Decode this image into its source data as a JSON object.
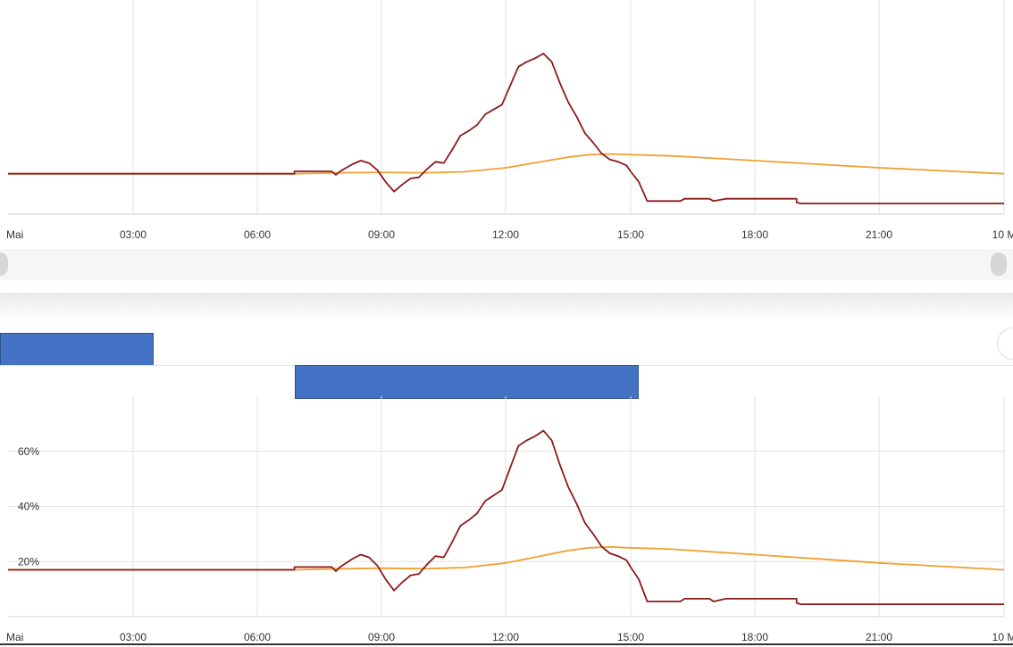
{
  "chart_data": [
    {
      "type": "line",
      "title": "",
      "x_ticks": [
        "Mai",
        "03:00",
        "06:00",
        "09:00",
        "12:00",
        "15:00",
        "18:00",
        "21:00",
        "10 M"
      ],
      "xlim": [
        0,
        24
      ],
      "ylim": [
        0,
        90
      ],
      "y_ticks": [],
      "grid": true,
      "series": [
        {
          "color": "#8b1a1a",
          "x": [
            0,
            6.9,
            7.8,
            7.9,
            8.0,
            8.3,
            8.5,
            8.7,
            8.9,
            9.1,
            9.3,
            9.5,
            9.7,
            9.9,
            10.1,
            10.3,
            10.5,
            10.7,
            10.9,
            11.1,
            11.3,
            11.5,
            11.7,
            11.9,
            12.1,
            12.3,
            12.5,
            12.7,
            12.9,
            13.1,
            13.3,
            13.5,
            13.7,
            13.9,
            14.1,
            14.3,
            14.5,
            14.7,
            14.9,
            15.0,
            15.2,
            15.4,
            16.2,
            16.3,
            16.9,
            17.0,
            17.3,
            18.0,
            19.0,
            19.1,
            24
          ],
          "y": [
            17,
            18,
            18,
            16.5,
            18,
            21,
            22.5,
            21.5,
            18.5,
            13.5,
            9.5,
            12.5,
            15,
            15.5,
            19,
            22,
            21.5,
            27,
            33,
            35,
            37.5,
            42,
            44,
            46,
            54,
            62,
            64,
            65.5,
            67.5,
            64,
            55,
            47,
            41,
            34,
            30,
            25.5,
            23,
            22,
            20.5,
            18,
            13.5,
            5.5,
            5.5,
            6.5,
            6.5,
            5.5,
            6.5,
            6.5,
            5,
            4.5,
            4.5
          ]
        },
        {
          "color": "#f0a030",
          "x": [
            0,
            6.9,
            8.0,
            9.0,
            10.0,
            11.0,
            12.0,
            12.5,
            13.0,
            13.5,
            14.0,
            14.5,
            15.0,
            16.0,
            18.0,
            21.0,
            24.0
          ],
          "y": [
            17,
            17,
            17.4,
            17.6,
            17.4,
            17.8,
            19.5,
            21,
            22.5,
            24,
            25,
            25.3,
            25,
            24.5,
            22.5,
            19.5,
            17
          ]
        }
      ]
    },
    {
      "type": "line",
      "title": "",
      "x_ticks": [
        "Mai",
        "03:00",
        "06:00",
        "09:00",
        "12:00",
        "15:00",
        "18:00",
        "21:00",
        "10 M"
      ],
      "xlim": [
        0,
        24
      ],
      "ylim": [
        0,
        80
      ],
      "y_ticks": [
        {
          "value": 20,
          "label": "20%"
        },
        {
          "value": 40,
          "label": "40%"
        },
        {
          "value": 60,
          "label": "60%"
        }
      ],
      "grid": true,
      "series": [
        {
          "color": "#8b1a1a",
          "x": [
            0,
            6.9,
            7.8,
            7.9,
            8.0,
            8.3,
            8.5,
            8.7,
            8.9,
            9.1,
            9.3,
            9.5,
            9.7,
            9.9,
            10.1,
            10.3,
            10.5,
            10.7,
            10.9,
            11.1,
            11.3,
            11.5,
            11.7,
            11.9,
            12.1,
            12.3,
            12.5,
            12.7,
            12.9,
            13.1,
            13.3,
            13.5,
            13.7,
            13.9,
            14.1,
            14.3,
            14.5,
            14.7,
            14.9,
            15.0,
            15.2,
            15.4,
            16.2,
            16.3,
            16.9,
            17.0,
            17.3,
            18.0,
            19.0,
            19.1,
            24
          ],
          "y": [
            17,
            18,
            18,
            16.5,
            18,
            21,
            22.5,
            21.5,
            18.5,
            13.5,
            9.5,
            12.5,
            15,
            15.5,
            19,
            22,
            21.5,
            27,
            33,
            35,
            37.5,
            42,
            44,
            46,
            54,
            62,
            64,
            65.5,
            67.5,
            64,
            55,
            47,
            41,
            34,
            30,
            25.5,
            23,
            22,
            20.5,
            18,
            13.5,
            5.5,
            5.5,
            6.5,
            6.5,
            5.5,
            6.5,
            6.5,
            5,
            4.5,
            4.5
          ]
        },
        {
          "color": "#f0a030",
          "x": [
            0,
            6.9,
            8.0,
            9.0,
            10.0,
            11.0,
            12.0,
            12.5,
            13.0,
            13.5,
            14.0,
            14.5,
            15.0,
            16.0,
            18.0,
            21.0,
            24.0
          ],
          "y": [
            17,
            17,
            17.4,
            17.6,
            17.4,
            17.8,
            19.5,
            21,
            22.5,
            24,
            25,
            25.3,
            25,
            24.5,
            22.5,
            19.5,
            17
          ]
        }
      ]
    }
  ]
}
